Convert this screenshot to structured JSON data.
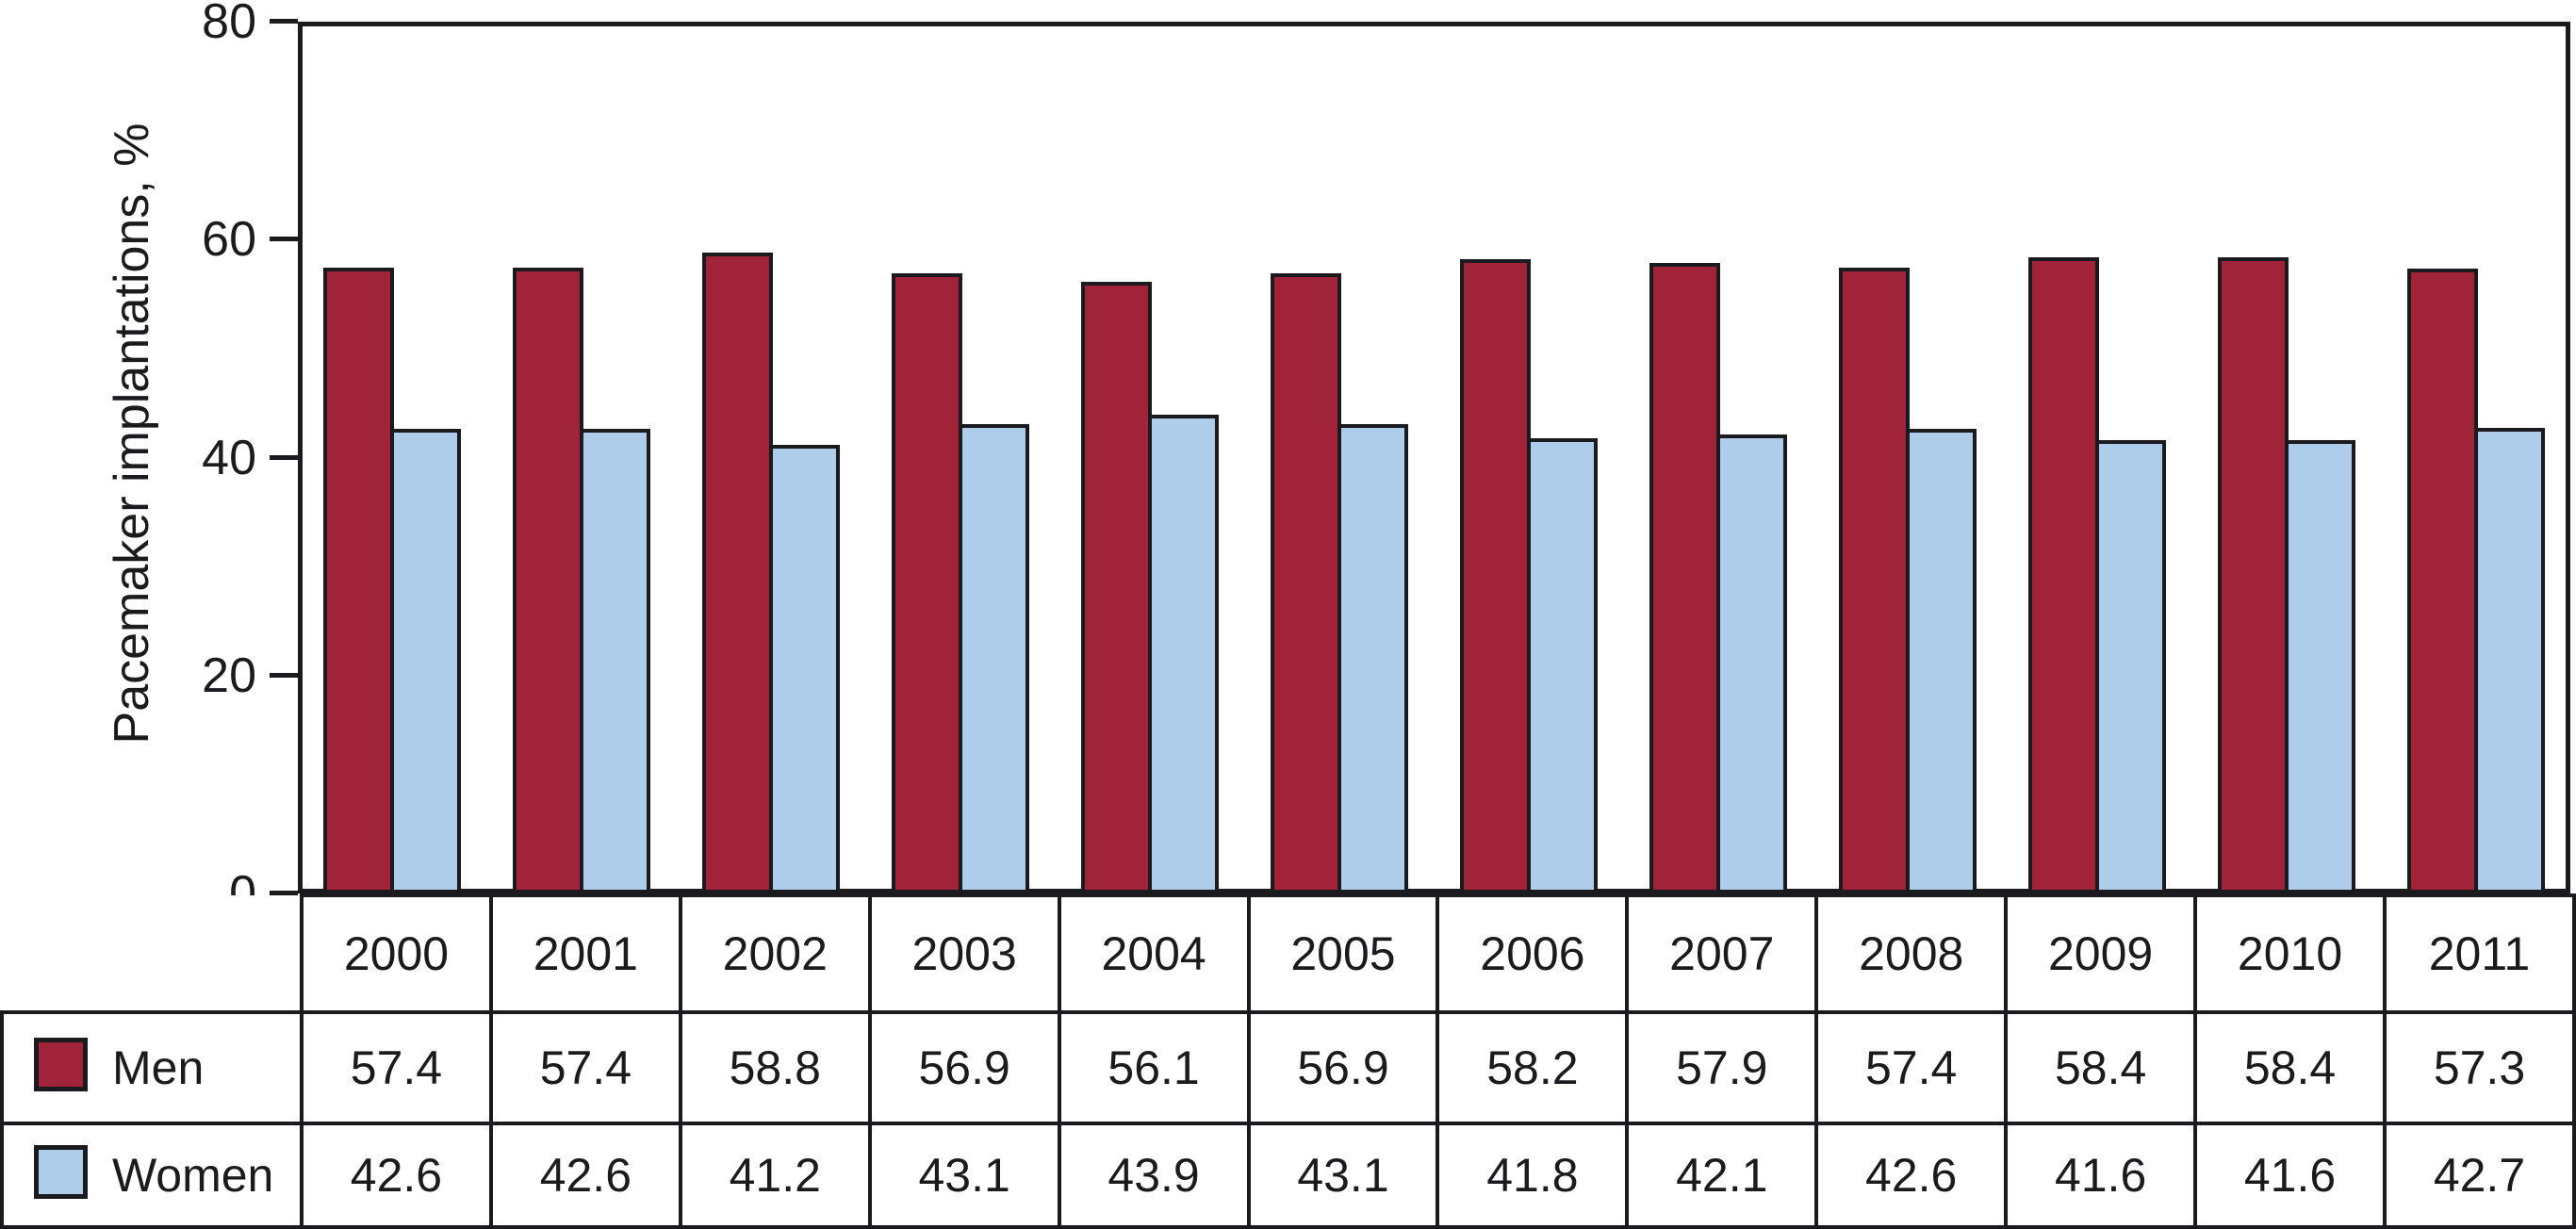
{
  "chart_data": {
    "type": "bar",
    "title": "",
    "ylabel": "Pacemaker implantations, %",
    "xlabel": "",
    "categories": [
      "2000",
      "2001",
      "2002",
      "2003",
      "2004",
      "2005",
      "2006",
      "2007",
      "2008",
      "2009",
      "2010",
      "2011"
    ],
    "series": [
      {
        "name": "Men",
        "color": "#A02339",
        "values": [
          57.4,
          57.4,
          58.8,
          56.9,
          56.1,
          56.9,
          58.2,
          57.9,
          57.4,
          58.4,
          58.4,
          57.3
        ]
      },
      {
        "name": "Women",
        "color": "#AECDEA",
        "values": [
          42.6,
          42.6,
          41.2,
          43.1,
          43.9,
          43.1,
          41.8,
          42.1,
          42.6,
          41.6,
          41.6,
          42.7
        ]
      }
    ],
    "ylim": [
      0,
      80
    ],
    "yticks": [
      0,
      20,
      40,
      60,
      80
    ],
    "grid": false,
    "legend_position": "table-left",
    "ink_color": "#1B1B1F"
  }
}
